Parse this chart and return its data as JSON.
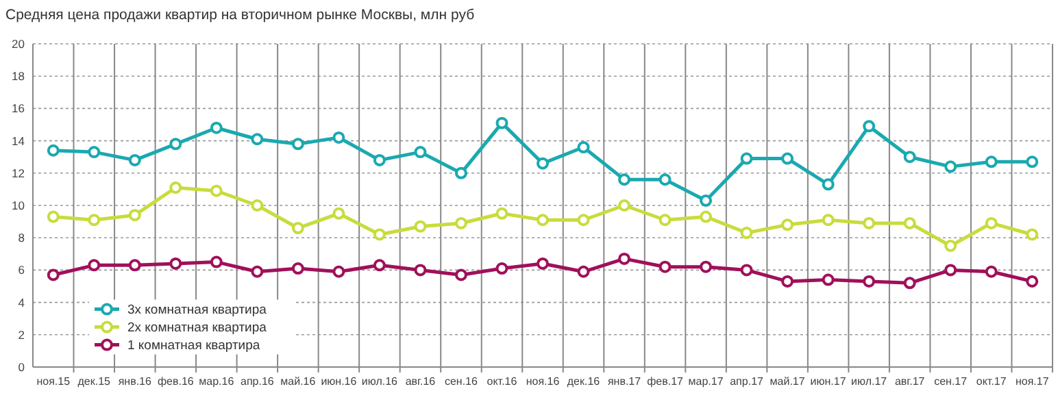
{
  "chart_data": {
    "type": "line",
    "title": "Средняя цена продажи квартир на вторичном рынке Москвы, млн руб",
    "categories": [
      "ноя.15",
      "дек.15",
      "янв.16",
      "фев.16",
      "мар.16",
      "апр.16",
      "май.16",
      "июн.16",
      "июл.16",
      "авг.16",
      "сен.16",
      "окт.16",
      "ноя.16",
      "дек.16",
      "янв.17",
      "фев.17",
      "мар.17",
      "апр.17",
      "май.17",
      "июн.17",
      "июл.17",
      "авг.17",
      "сен.17",
      "окт.17",
      "ноя.17"
    ],
    "series": [
      {
        "name": "3х комнатная квартира",
        "color": "#1aa9b0",
        "values": [
          13.4,
          13.3,
          12.8,
          13.8,
          14.8,
          14.1,
          13.8,
          14.2,
          12.8,
          13.3,
          12.0,
          15.1,
          12.6,
          13.6,
          11.6,
          11.6,
          10.3,
          12.9,
          12.9,
          11.3,
          14.9,
          13.0,
          12.4,
          12.7,
          12.7
        ]
      },
      {
        "name": "2х комнатная квартира",
        "color": "#c8dc3c",
        "values": [
          9.3,
          9.1,
          9.4,
          11.1,
          10.9,
          10.0,
          8.6,
          9.5,
          8.2,
          8.7,
          8.9,
          9.5,
          9.1,
          9.1,
          10.0,
          9.1,
          9.3,
          8.3,
          8.8,
          9.1,
          8.9,
          8.9,
          7.5,
          8.9,
          8.2
        ]
      },
      {
        "name": "1 комнатная квартира",
        "color": "#a0105a",
        "values": [
          5.7,
          6.3,
          6.3,
          6.4,
          6.5,
          5.9,
          6.1,
          5.9,
          6.3,
          6.0,
          5.7,
          6.1,
          6.4,
          5.9,
          6.7,
          6.2,
          6.2,
          6.0,
          5.3,
          5.4,
          5.3,
          5.2,
          6.0,
          5.9,
          5.3
        ]
      }
    ],
    "ylim": [
      0,
      20
    ],
    "yticks": [
      0,
      2,
      4,
      6,
      8,
      10,
      12,
      14,
      16,
      18,
      20
    ],
    "grid": true,
    "legend": "bottom left",
    "marker": "circle",
    "line_style": "solid"
  }
}
